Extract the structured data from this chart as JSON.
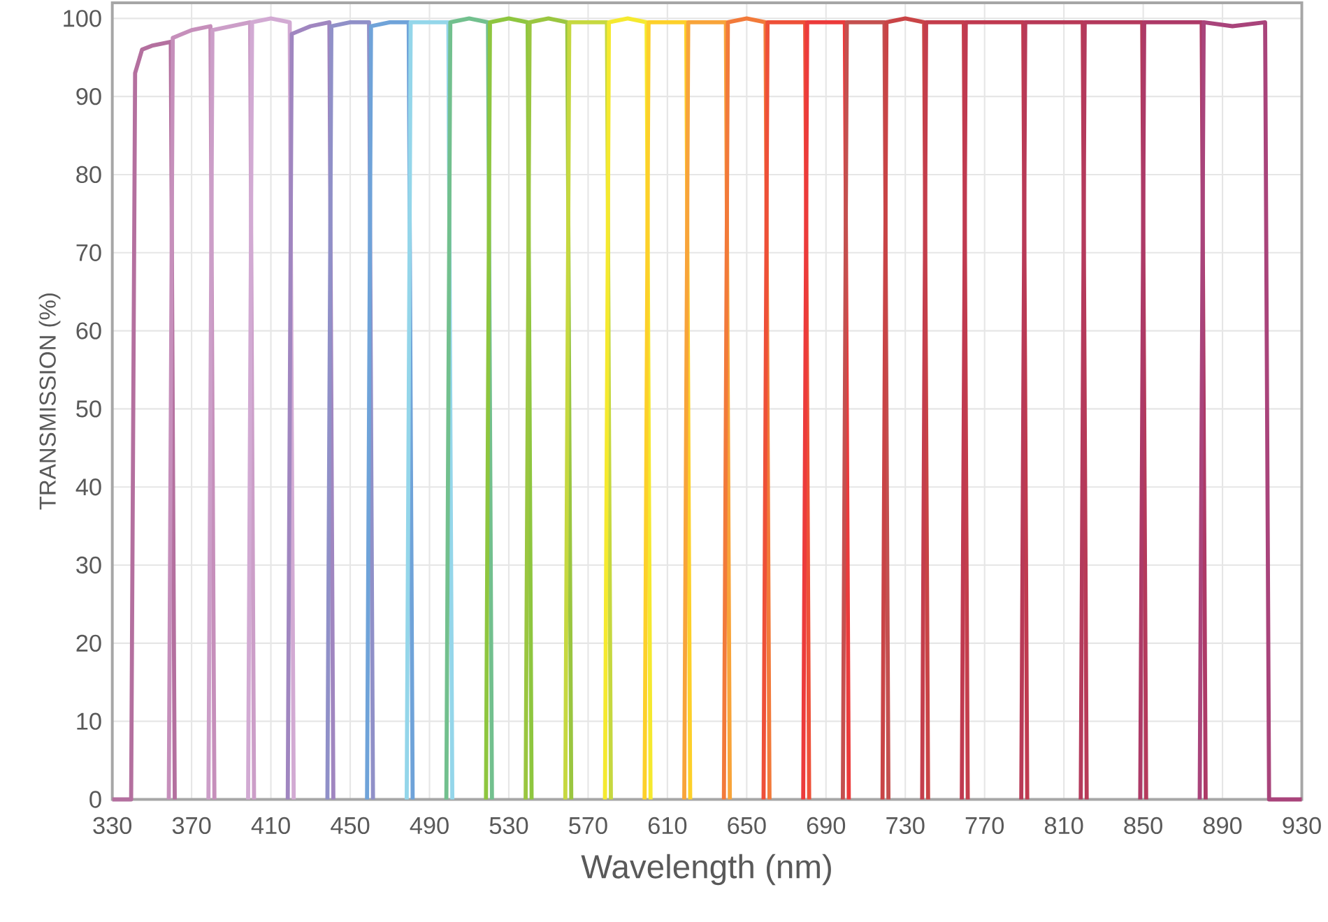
{
  "chart_data": {
    "type": "line",
    "xlabel": "Wavelength (nm)",
    "ylabel": "TRANSMISSION (%)",
    "xlim": [
      330,
      930
    ],
    "ylim": [
      0,
      102
    ],
    "xticks": [
      330,
      370,
      410,
      450,
      490,
      530,
      570,
      610,
      650,
      690,
      730,
      770,
      810,
      850,
      890,
      930
    ],
    "yticks": [
      0,
      10,
      20,
      30,
      40,
      50,
      60,
      70,
      80,
      90,
      100
    ],
    "grid": true,
    "marker": "none",
    "line_style": "solid",
    "series": [
      {
        "color": "#b4709f",
        "x": [
          330,
          339.5,
          341.5,
          345,
          350,
          359.5,
          361.5
        ],
        "values": [
          0,
          0,
          93,
          96,
          96.5,
          97,
          0
        ]
      },
      {
        "color": "#c68fbb",
        "x": [
          358.5,
          360.5,
          370,
          379.5,
          381.5
        ],
        "values": [
          0,
          97.5,
          98.5,
          99,
          0
        ]
      },
      {
        "color": "#cc9ec8",
        "x": [
          378.5,
          380.5,
          390,
          399.5,
          401.5
        ],
        "values": [
          0,
          98.5,
          99,
          99.5,
          0
        ]
      },
      {
        "color": "#d2aad3",
        "x": [
          398.5,
          400.5,
          410,
          419.5,
          421.5
        ],
        "values": [
          0,
          99.5,
          100,
          99.5,
          0
        ]
      },
      {
        "color": "#a086c0",
        "x": [
          418.5,
          420.5,
          430,
          439.5,
          441.5
        ],
        "values": [
          0,
          98,
          99,
          99.5,
          0
        ]
      },
      {
        "color": "#9090c8",
        "x": [
          438.5,
          440.5,
          450,
          459.5,
          461.5
        ],
        "values": [
          0,
          99,
          99.5,
          99.5,
          0
        ]
      },
      {
        "color": "#6fa3d9",
        "x": [
          458.5,
          460.5,
          470,
          479.5,
          481.5
        ],
        "values": [
          0,
          99,
          99.5,
          99.5,
          0
        ]
      },
      {
        "color": "#94d6ea",
        "x": [
          478.5,
          480.5,
          490,
          499.5,
          501.5
        ],
        "values": [
          0,
          99.5,
          99.5,
          99.5,
          0
        ]
      },
      {
        "color": "#72c08e",
        "x": [
          498.5,
          500.5,
          510,
          519.5,
          521.5
        ],
        "values": [
          0,
          99.5,
          100,
          99.5,
          0
        ]
      },
      {
        "color": "#8ec63f",
        "x": [
          518.5,
          520.5,
          530,
          539.5,
          541.5
        ],
        "values": [
          0,
          99.5,
          100,
          99.5,
          0
        ]
      },
      {
        "color": "#9ac640",
        "x": [
          538.5,
          540.5,
          550,
          559.5,
          561.5
        ],
        "values": [
          0,
          99.5,
          100,
          99.5,
          0
        ]
      },
      {
        "color": "#c6d840",
        "x": [
          558.5,
          560.5,
          570,
          579.5,
          581.5
        ],
        "values": [
          0,
          99.5,
          99.5,
          99.5,
          0
        ]
      },
      {
        "color": "#f5e92f",
        "x": [
          578.5,
          580.5,
          590,
          599.5,
          601.5
        ],
        "values": [
          0,
          99.5,
          100,
          99.5,
          0
        ]
      },
      {
        "color": "#fdd02a",
        "x": [
          598.5,
          600.5,
          610,
          619.5,
          621.5
        ],
        "values": [
          0,
          99.5,
          99.5,
          99.5,
          0
        ]
      },
      {
        "color": "#f8a43a",
        "x": [
          618.5,
          620.5,
          630,
          639.5,
          641.5
        ],
        "values": [
          0,
          99.5,
          99.5,
          99.5,
          0
        ]
      },
      {
        "color": "#f27a3a",
        "x": [
          638.5,
          640.5,
          650,
          659.5,
          661.5
        ],
        "values": [
          0,
          99.5,
          100,
          99.5,
          0
        ]
      },
      {
        "color": "#ee5038",
        "x": [
          658.5,
          660.5,
          670,
          679.5,
          681.5
        ],
        "values": [
          0,
          99.5,
          99.5,
          99.5,
          0
        ]
      },
      {
        "color": "#ec3b3b",
        "x": [
          678.5,
          680.5,
          690,
          699.5,
          701.5
        ],
        "values": [
          0,
          99.5,
          99.5,
          99.5,
          0
        ]
      },
      {
        "color": "#c4504f",
        "x": [
          698.5,
          700.5,
          710,
          719.5,
          721.5
        ],
        "values": [
          0,
          99.5,
          99.5,
          99.5,
          0
        ]
      },
      {
        "color": "#c94446",
        "x": [
          718.5,
          720.5,
          730,
          739.5,
          741.5
        ],
        "values": [
          0,
          99.5,
          100,
          99.5,
          0
        ]
      },
      {
        "color": "#c43e4c",
        "x": [
          738.5,
          740.5,
          750,
          759.5,
          761.5
        ],
        "values": [
          0,
          99.5,
          99.5,
          99.5,
          0
        ]
      },
      {
        "color": "#c03a50",
        "x": [
          758.5,
          760.5,
          775,
          789.5,
          791.5
        ],
        "values": [
          0,
          99.5,
          99.5,
          99.5,
          0
        ]
      },
      {
        "color": "#b83a57",
        "x": [
          788.5,
          790.5,
          805,
          819.5,
          821.5
        ],
        "values": [
          0,
          99.5,
          99.5,
          99.5,
          0
        ]
      },
      {
        "color": "#b43a5c",
        "x": [
          818.5,
          820.5,
          835,
          849.5,
          851.5
        ],
        "values": [
          0,
          99.5,
          99.5,
          99.5,
          0
        ]
      },
      {
        "color": "#ad3a67",
        "x": [
          848.5,
          850.5,
          865,
          879.5,
          881.5
        ],
        "values": [
          0,
          99.5,
          99.5,
          99.5,
          0
        ]
      },
      {
        "color": "#a9447b",
        "x": [
          878.5,
          880.5,
          895,
          911.5,
          913.5,
          930
        ],
        "values": [
          0,
          99.5,
          99,
          99.5,
          0,
          0
        ]
      }
    ]
  }
}
